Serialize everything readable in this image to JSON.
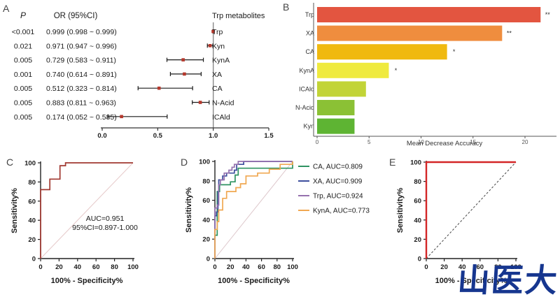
{
  "watermark": {
    "text": "山医大",
    "color": "#16368f"
  },
  "chart_data": [
    {
      "id": "A",
      "type": "forest",
      "header": {
        "p": "P",
        "or": "OR (95%CI)",
        "right": "Trp metabolites"
      },
      "rows": [
        {
          "label": "Trp",
          "p": "<0.001",
          "or_text": "0.999 (0.998 ~ 0.999)",
          "or": 0.999,
          "ci": [
            0.998,
            0.999
          ]
        },
        {
          "label": "Kyn",
          "p": "0.021",
          "or_text": "0.971 (0.947 ~ 0.996)",
          "or": 0.971,
          "ci": [
            0.947,
            0.996
          ]
        },
        {
          "label": "KynA",
          "p": "0.005",
          "or_text": "0.729 (0.583 ~ 0.911)",
          "or": 0.729,
          "ci": [
            0.583,
            0.911
          ]
        },
        {
          "label": "XA",
          "p": "0.001",
          "or_text": "0.740 (0.614 ~ 0.891)",
          "or": 0.74,
          "ci": [
            0.614,
            0.891
          ]
        },
        {
          "label": "CA",
          "p": "0.005",
          "or_text": "0.512 (0.323 ~ 0.814)",
          "or": 0.512,
          "ci": [
            0.323,
            0.814
          ]
        },
        {
          "label": "N-Acid",
          "p": "0.005",
          "or_text": "0.883 (0.811 ~ 0.963)",
          "or": 0.883,
          "ci": [
            0.811,
            0.963
          ]
        },
        {
          "label": "ICAld",
          "p": "0.005",
          "or_text": "0.174 (0.052 ~ 0.585)",
          "or": 0.174,
          "ci": [
            0.052,
            0.585
          ]
        }
      ],
      "xlim": [
        0,
        1.5
      ],
      "x_ticks": [
        "0.0",
        "0.5",
        "1.0",
        "1.5"
      ],
      "ref_x": 1.0,
      "marker_color": "#b5382c",
      "line_color": "#1a1a1a",
      "ref_line_color": "#8a8a8a"
    },
    {
      "id": "B",
      "type": "bar",
      "orientation": "horizontal",
      "categories": [
        "Trp",
        "XA",
        "CA",
        "KynA",
        "ICAld",
        "N-Acid",
        "Kyn"
      ],
      "values": [
        21.5,
        17.8,
        12.5,
        6.9,
        4.7,
        3.6,
        3.6
      ],
      "significance": [
        "**",
        "**",
        "*",
        "*",
        "",
        "",
        ""
      ],
      "bar_colors": [
        "#e35540",
        "#ef8d3e",
        "#f0b90f",
        "#efea3e",
        "#c2d437",
        "#8bc135",
        "#5eb433"
      ],
      "xlabel": "Mean Decrease Accuracy",
      "xlim": [
        0,
        23
      ],
      "x_ticks": [
        0,
        5,
        10,
        15,
        20
      ],
      "grid": false
    },
    {
      "id": "C",
      "type": "line",
      "subtype": "roc",
      "xlabel": "100% - Specificity%",
      "ylabel": "Sensitivity%",
      "xlim": [
        0,
        100
      ],
      "ylim": [
        0,
        100
      ],
      "x_ticks": [
        0,
        20,
        40,
        60,
        80,
        100
      ],
      "y_ticks": [
        0,
        20,
        40,
        60,
        80,
        100
      ],
      "annotation": [
        "AUC=0.951",
        "95%CI=0.897-1.000"
      ],
      "diagonal": {
        "style": "solid",
        "color": "#e6caca"
      },
      "series": [
        {
          "name": "ROC",
          "color": "#a13931",
          "points": [
            [
              0,
              0
            ],
            [
              0,
              72
            ],
            [
              10,
              72
            ],
            [
              10,
              83
            ],
            [
              21,
              83
            ],
            [
              21,
              97
            ],
            [
              27,
              97
            ],
            [
              27,
              100
            ],
            [
              100,
              100
            ]
          ]
        }
      ]
    },
    {
      "id": "D",
      "type": "line",
      "subtype": "roc",
      "xlabel": "100% - Specificity%",
      "ylabel": "Sensitivity%",
      "xlim": [
        0,
        100
      ],
      "ylim": [
        0,
        100
      ],
      "x_ticks": [
        0,
        20,
        40,
        60,
        80,
        100
      ],
      "y_ticks": [
        0,
        20,
        40,
        60,
        80,
        100
      ],
      "diagonal": {
        "style": "solid",
        "color": "#ddc7cb"
      },
      "legend": [
        {
          "label": "CA, AUC=0.809",
          "color": "#2f9362"
        },
        {
          "label": "XA, AUC=0.909",
          "color": "#3d4f9d"
        },
        {
          "label": "Trp, AUC=0.924",
          "color": "#9571ae"
        },
        {
          "label": "KynA, AUC=0.773",
          "color": "#f0a851"
        }
      ],
      "series": [
        {
          "name": "CA",
          "color": "#2f9362",
          "points": [
            [
              0,
              0
            ],
            [
              0,
              24
            ],
            [
              3,
              24
            ],
            [
              3,
              69
            ],
            [
              6,
              69
            ],
            [
              6,
              76
            ],
            [
              20,
              76
            ],
            [
              20,
              79
            ],
            [
              26,
              79
            ],
            [
              26,
              86
            ],
            [
              30,
              86
            ],
            [
              30,
              93
            ],
            [
              100,
              93
            ],
            [
              100,
              100
            ]
          ]
        },
        {
          "name": "XA",
          "color": "#3d4f9d",
          "points": [
            [
              0,
              0
            ],
            [
              0,
              44
            ],
            [
              2,
              44
            ],
            [
              2,
              48
            ],
            [
              4,
              48
            ],
            [
              4,
              69
            ],
            [
              5,
              69
            ],
            [
              5,
              81
            ],
            [
              10,
              81
            ],
            [
              10,
              85
            ],
            [
              15,
              85
            ],
            [
              15,
              88
            ],
            [
              25,
              88
            ],
            [
              25,
              91
            ],
            [
              28,
              91
            ],
            [
              28,
              97
            ],
            [
              37,
              97
            ],
            [
              37,
              100
            ],
            [
              84,
              100
            ],
            [
              100,
              100
            ]
          ]
        },
        {
          "name": "Trp",
          "color": "#9571ae",
          "points": [
            [
              0,
              0
            ],
            [
              0,
              52
            ],
            [
              3,
              52
            ],
            [
              3,
              55
            ],
            [
              5,
              55
            ],
            [
              5,
              76
            ],
            [
              7,
              76
            ],
            [
              7,
              81
            ],
            [
              12,
              81
            ],
            [
              12,
              88
            ],
            [
              18,
              88
            ],
            [
              18,
              91
            ],
            [
              22,
              91
            ],
            [
              22,
              94
            ],
            [
              25,
              94
            ],
            [
              25,
              97
            ],
            [
              30,
              97
            ],
            [
              30,
              100
            ],
            [
              100,
              100
            ]
          ]
        },
        {
          "name": "KynA",
          "color": "#f0a851",
          "points": [
            [
              0,
              0
            ],
            [
              0,
              30
            ],
            [
              3,
              30
            ],
            [
              3,
              38
            ],
            [
              5,
              38
            ],
            [
              5,
              50
            ],
            [
              10,
              50
            ],
            [
              10,
              62
            ],
            [
              15,
              62
            ],
            [
              15,
              69
            ],
            [
              27,
              69
            ],
            [
              27,
              73
            ],
            [
              33,
              73
            ],
            [
              33,
              77
            ],
            [
              40,
              77
            ],
            [
              40,
              85
            ],
            [
              55,
              85
            ],
            [
              55,
              88
            ],
            [
              70,
              88
            ],
            [
              70,
              92
            ],
            [
              84,
              92
            ],
            [
              84,
              97
            ],
            [
              100,
              97
            ],
            [
              100,
              100
            ]
          ]
        }
      ]
    },
    {
      "id": "E",
      "type": "line",
      "subtype": "roc",
      "xlabel": "100% - Specificity%",
      "ylabel": "Sensitivity%",
      "xlim": [
        0,
        100
      ],
      "ylim": [
        0,
        100
      ],
      "x_ticks": [
        0,
        20,
        40,
        60,
        80,
        100
      ],
      "y_ticks": [
        0,
        20,
        40,
        60,
        80,
        100
      ],
      "diagonal": {
        "style": "dashed",
        "color": "#444444"
      },
      "series": [
        {
          "name": "ROC",
          "color": "#d42627",
          "points": [
            [
              0,
              0
            ],
            [
              0,
              100
            ],
            [
              100,
              100
            ]
          ]
        }
      ]
    }
  ]
}
